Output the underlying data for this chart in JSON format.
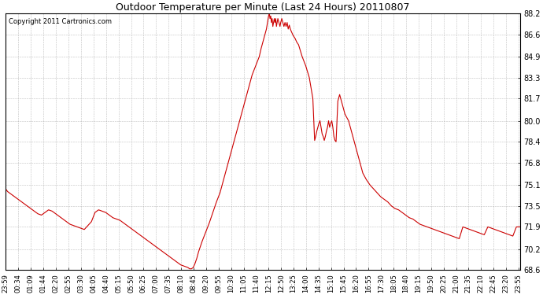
{
  "title": "Outdoor Temperature per Minute (Last 24 Hours) 20110807",
  "copyright": "Copyright 2011 Cartronics.com",
  "line_color": "#cc0000",
  "background_color": "#ffffff",
  "plot_bg_color": "#ffffff",
  "grid_color": "#b0b0b0",
  "ylim": [
    68.6,
    88.2
  ],
  "yticks": [
    68.6,
    70.2,
    71.9,
    73.5,
    75.1,
    76.8,
    78.4,
    80.0,
    81.7,
    83.3,
    84.9,
    86.6,
    88.2
  ],
  "xlim": [
    0,
    1440
  ],
  "xtick_positions": [
    0,
    35,
    70,
    105,
    141,
    176,
    211,
    246,
    281,
    316,
    351,
    386,
    421,
    456,
    491,
    526,
    561,
    596,
    631,
    666,
    701,
    736,
    771,
    806,
    841,
    876,
    911,
    946,
    981,
    1016,
    1051,
    1086,
    1121,
    1156,
    1191,
    1226,
    1261,
    1296,
    1331,
    1366,
    1401,
    1436
  ],
  "xtick_labels": [
    "23:59",
    "00:34",
    "01:09",
    "01:44",
    "02:20",
    "02:55",
    "03:30",
    "04:05",
    "04:40",
    "05:15",
    "05:50",
    "06:25",
    "07:00",
    "07:35",
    "08:10",
    "08:45",
    "09:20",
    "09:55",
    "10:30",
    "11:05",
    "11:40",
    "12:15",
    "12:50",
    "13:25",
    "14:00",
    "14:35",
    "15:10",
    "15:45",
    "16:20",
    "16:55",
    "17:30",
    "18:05",
    "18:40",
    "19:15",
    "19:50",
    "20:25",
    "21:00",
    "21:35",
    "22:10",
    "22:45",
    "23:20",
    "23:55"
  ],
  "data_points": [
    [
      0,
      74.8
    ],
    [
      5,
      74.6
    ],
    [
      10,
      74.5
    ],
    [
      20,
      74.3
    ],
    [
      30,
      74.1
    ],
    [
      40,
      73.9
    ],
    [
      50,
      73.7
    ],
    [
      60,
      73.5
    ],
    [
      70,
      73.3
    ],
    [
      80,
      73.1
    ],
    [
      90,
      72.9
    ],
    [
      100,
      72.8
    ],
    [
      110,
      73.0
    ],
    [
      120,
      73.2
    ],
    [
      130,
      73.1
    ],
    [
      140,
      72.9
    ],
    [
      150,
      72.7
    ],
    [
      160,
      72.5
    ],
    [
      170,
      72.3
    ],
    [
      180,
      72.1
    ],
    [
      190,
      72.0
    ],
    [
      200,
      71.9
    ],
    [
      210,
      71.8
    ],
    [
      220,
      71.7
    ],
    [
      230,
      72.0
    ],
    [
      240,
      72.3
    ],
    [
      250,
      73.0
    ],
    [
      260,
      73.2
    ],
    [
      270,
      73.1
    ],
    [
      280,
      73.0
    ],
    [
      290,
      72.8
    ],
    [
      300,
      72.6
    ],
    [
      310,
      72.5
    ],
    [
      320,
      72.4
    ],
    [
      330,
      72.2
    ],
    [
      340,
      72.0
    ],
    [
      350,
      71.8
    ],
    [
      360,
      71.6
    ],
    [
      370,
      71.4
    ],
    [
      380,
      71.2
    ],
    [
      390,
      71.0
    ],
    [
      400,
      70.8
    ],
    [
      410,
      70.6
    ],
    [
      420,
      70.4
    ],
    [
      430,
      70.2
    ],
    [
      440,
      70.0
    ],
    [
      450,
      69.8
    ],
    [
      460,
      69.6
    ],
    [
      470,
      69.4
    ],
    [
      480,
      69.2
    ],
    [
      490,
      69.0
    ],
    [
      500,
      68.9
    ],
    [
      510,
      68.8
    ],
    [
      515,
      68.7
    ],
    [
      520,
      68.7
    ],
    [
      525,
      68.8
    ],
    [
      530,
      69.1
    ],
    [
      535,
      69.5
    ],
    [
      540,
      70.0
    ],
    [
      550,
      70.8
    ],
    [
      560,
      71.5
    ],
    [
      570,
      72.2
    ],
    [
      580,
      73.0
    ],
    [
      590,
      73.8
    ],
    [
      600,
      74.5
    ],
    [
      610,
      75.5
    ],
    [
      620,
      76.5
    ],
    [
      630,
      77.5
    ],
    [
      640,
      78.5
    ],
    [
      650,
      79.5
    ],
    [
      660,
      80.5
    ],
    [
      670,
      81.5
    ],
    [
      680,
      82.5
    ],
    [
      690,
      83.5
    ],
    [
      700,
      84.2
    ],
    [
      710,
      84.9
    ],
    [
      715,
      85.5
    ],
    [
      720,
      86.0
    ],
    [
      725,
      86.5
    ],
    [
      730,
      87.0
    ],
    [
      733,
      87.5
    ],
    [
      736,
      88.0
    ],
    [
      738,
      88.2
    ],
    [
      740,
      87.8
    ],
    [
      742,
      88.0
    ],
    [
      744,
      87.5
    ],
    [
      746,
      87.8
    ],
    [
      748,
      87.2
    ],
    [
      750,
      87.5
    ],
    [
      752,
      87.8
    ],
    [
      754,
      87.5
    ],
    [
      756,
      87.8
    ],
    [
      758,
      87.2
    ],
    [
      760,
      87.5
    ],
    [
      762,
      87.8
    ],
    [
      765,
      87.5
    ],
    [
      768,
      87.2
    ],
    [
      770,
      87.5
    ],
    [
      773,
      87.8
    ],
    [
      776,
      87.5
    ],
    [
      779,
      87.2
    ],
    [
      782,
      87.5
    ],
    [
      785,
      87.2
    ],
    [
      788,
      87.5
    ],
    [
      791,
      87.0
    ],
    [
      794,
      87.3
    ],
    [
      797,
      87.0
    ],
    [
      800,
      86.8
    ],
    [
      805,
      86.5
    ],
    [
      810,
      86.3
    ],
    [
      815,
      86.0
    ],
    [
      820,
      85.8
    ],
    [
      830,
      84.9
    ],
    [
      840,
      84.2
    ],
    [
      850,
      83.3
    ],
    [
      860,
      81.7
    ],
    [
      865,
      78.5
    ],
    [
      868,
      78.8
    ],
    [
      871,
      79.2
    ],
    [
      874,
      79.5
    ],
    [
      877,
      79.8
    ],
    [
      880,
      80.0
    ],
    [
      883,
      79.5
    ],
    [
      886,
      79.0
    ],
    [
      889,
      78.8
    ],
    [
      892,
      78.5
    ],
    [
      895,
      78.8
    ],
    [
      898,
      79.2
    ],
    [
      901,
      79.5
    ],
    [
      904,
      80.0
    ],
    [
      907,
      79.5
    ],
    [
      910,
      79.8
    ],
    [
      913,
      80.0
    ],
    [
      916,
      79.5
    ],
    [
      919,
      78.8
    ],
    [
      922,
      78.5
    ],
    [
      925,
      78.4
    ],
    [
      930,
      81.5
    ],
    [
      932,
      81.7
    ],
    [
      935,
      82.0
    ],
    [
      940,
      81.5
    ],
    [
      945,
      81.0
    ],
    [
      950,
      80.5
    ],
    [
      960,
      80.0
    ],
    [
      970,
      79.0
    ],
    [
      980,
      78.0
    ],
    [
      990,
      77.0
    ],
    [
      1000,
      76.0
    ],
    [
      1010,
      75.5
    ],
    [
      1020,
      75.1
    ],
    [
      1030,
      74.8
    ],
    [
      1040,
      74.5
    ],
    [
      1050,
      74.2
    ],
    [
      1060,
      74.0
    ],
    [
      1070,
      73.8
    ],
    [
      1080,
      73.5
    ],
    [
      1090,
      73.3
    ],
    [
      1100,
      73.2
    ],
    [
      1110,
      73.0
    ],
    [
      1120,
      72.8
    ],
    [
      1130,
      72.6
    ],
    [
      1140,
      72.5
    ],
    [
      1150,
      72.3
    ],
    [
      1160,
      72.1
    ],
    [
      1170,
      72.0
    ],
    [
      1180,
      71.9
    ],
    [
      1190,
      71.8
    ],
    [
      1200,
      71.7
    ],
    [
      1210,
      71.6
    ],
    [
      1220,
      71.5
    ],
    [
      1230,
      71.4
    ],
    [
      1240,
      71.3
    ],
    [
      1250,
      71.2
    ],
    [
      1260,
      71.1
    ],
    [
      1270,
      71.0
    ],
    [
      1280,
      71.9
    ],
    [
      1290,
      71.8
    ],
    [
      1300,
      71.7
    ],
    [
      1310,
      71.6
    ],
    [
      1320,
      71.5
    ],
    [
      1330,
      71.4
    ],
    [
      1340,
      71.3
    ],
    [
      1350,
      71.9
    ],
    [
      1360,
      71.8
    ],
    [
      1370,
      71.7
    ],
    [
      1380,
      71.6
    ],
    [
      1390,
      71.5
    ],
    [
      1400,
      71.4
    ],
    [
      1410,
      71.3
    ],
    [
      1420,
      71.2
    ],
    [
      1430,
      71.9
    ],
    [
      1440,
      71.9
    ]
  ]
}
